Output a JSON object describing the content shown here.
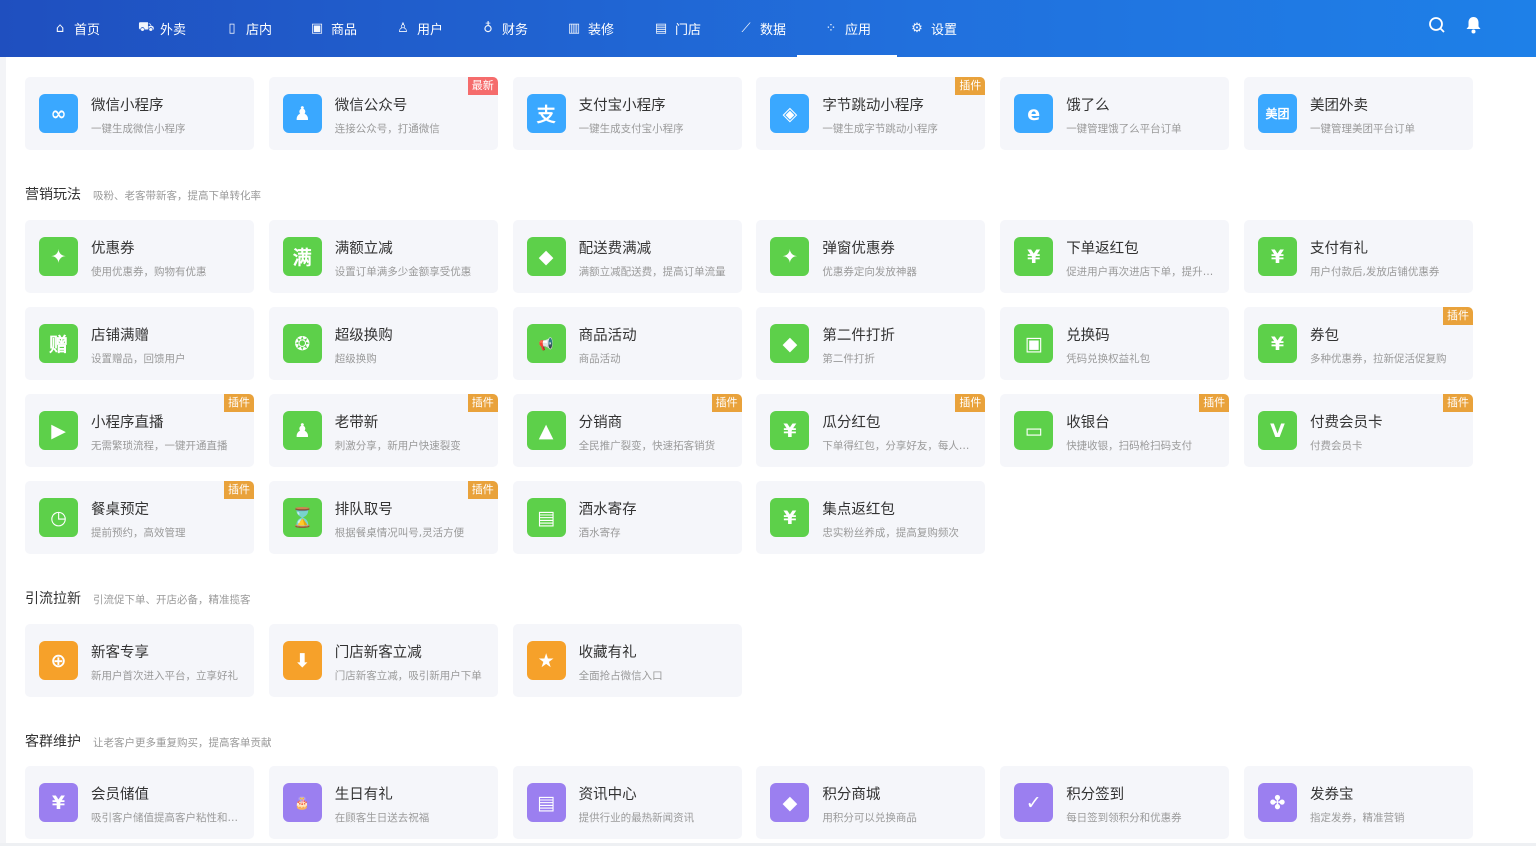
{
  "colors": {
    "blue": "#3aa8ff",
    "green": "#5dd04a",
    "orange": "#f6a12a",
    "purple": "#9b7ff0",
    "badge_plugin": "#e9a23b",
    "badge_new": "#f56c6c"
  },
  "nav": {
    "items": [
      {
        "label": "首页",
        "icon": "home-icon",
        "glyph": "⌂"
      },
      {
        "label": "外卖",
        "icon": "takeout-icon",
        "glyph": "⛟"
      },
      {
        "label": "店内",
        "icon": "door-icon",
        "glyph": "▯"
      },
      {
        "label": "商品",
        "icon": "goods-icon",
        "glyph": "▣"
      },
      {
        "label": "用户",
        "icon": "user-icon",
        "glyph": "♙"
      },
      {
        "label": "财务",
        "icon": "money-bag-icon",
        "glyph": "♁"
      },
      {
        "label": "装修",
        "icon": "shop-icon",
        "glyph": "▥"
      },
      {
        "label": "门店",
        "icon": "store-icon",
        "glyph": "▤"
      },
      {
        "label": "数据",
        "icon": "chart-icon",
        "glyph": "⟋"
      },
      {
        "label": "应用",
        "icon": "apps-icon",
        "glyph": "⁘",
        "active": true
      },
      {
        "label": "设置",
        "icon": "gear-icon",
        "glyph": "⚙"
      }
    ]
  },
  "sections": [
    {
      "title": "",
      "subtitle": "",
      "color": "blue",
      "cards": [
        {
          "title": "微信小程序",
          "subtitle": "一键生成微信小程序",
          "icon": "wechat-miniprogram-icon",
          "glyph": "∞"
        },
        {
          "title": "微信公众号",
          "subtitle": "连接公众号，打通微信",
          "icon": "official-account-icon",
          "glyph": "♟",
          "badge": "最新",
          "badge_type": "new"
        },
        {
          "title": "支付宝小程序",
          "subtitle": "一键生成支付宝小程序",
          "icon": "alipay-icon",
          "glyph": "支"
        },
        {
          "title": "字节跳动小程序",
          "subtitle": "一键生成字节跳动小程序",
          "icon": "bytedance-icon",
          "glyph": "◈",
          "badge": "插件",
          "badge_type": "plugin"
        },
        {
          "title": "饿了么",
          "subtitle": "一键管理饿了么平台订单",
          "icon": "eleme-icon",
          "glyph": "e"
        },
        {
          "title": "美团外卖",
          "subtitle": "一键管理美团平台订单",
          "icon": "meituan-icon",
          "glyph": "美团"
        }
      ]
    },
    {
      "title": "营销玩法",
      "subtitle": "吸粉、老客带新客，提高下单转化率",
      "color": "green",
      "cards": [
        {
          "title": "优惠券",
          "subtitle": "使用优惠券，购物有优惠",
          "icon": "coupon-icon",
          "glyph": "✦"
        },
        {
          "title": "满额立减",
          "subtitle": "设置订单满多少金额享受优惠",
          "icon": "full-reduction-icon",
          "glyph": "满"
        },
        {
          "title": "配送费满减",
          "subtitle": "满额立减配送费，提高订单流量",
          "icon": "tag-icon",
          "glyph": "◆"
        },
        {
          "title": "弹窗优惠券",
          "subtitle": "优惠券定向发放神器",
          "icon": "popup-coupon-icon",
          "glyph": "✦"
        },
        {
          "title": "下单返红包",
          "subtitle": "促进用户再次进店下单，提升复购率",
          "icon": "red-packet-icon",
          "glyph": "¥"
        },
        {
          "title": "支付有礼",
          "subtitle": "用户付款后,发放店铺优惠券",
          "icon": "pay-gift-icon",
          "glyph": "¥"
        },
        {
          "title": "店铺满赠",
          "subtitle": "设置赠品，回馈用户",
          "icon": "gift-text-icon",
          "glyph": "赠"
        },
        {
          "title": "超级换购",
          "subtitle": "超级换购",
          "icon": "wheel-icon",
          "glyph": "❂"
        },
        {
          "title": "商品活动",
          "subtitle": "商品活动",
          "icon": "megaphone-icon",
          "glyph": "📢"
        },
        {
          "title": "第二件打折",
          "subtitle": "第二件打折",
          "icon": "discount-tag-icon",
          "glyph": "◆"
        },
        {
          "title": "兑换码",
          "subtitle": "凭码兑换权益礼包",
          "icon": "redeem-code-icon",
          "glyph": "▣"
        },
        {
          "title": "券包",
          "subtitle": "多种优惠券，拉新促活促复购",
          "icon": "coupon-pack-icon",
          "glyph": "¥",
          "badge": "插件",
          "badge_type": "plugin"
        },
        {
          "title": "小程序直播",
          "subtitle": "无需繁琐流程，一键开通直播",
          "icon": "live-video-icon",
          "glyph": "▶",
          "badge": "插件",
          "badge_type": "plugin"
        },
        {
          "title": "老带新",
          "subtitle": "刺激分享，新用户快速裂变",
          "icon": "referral-icon",
          "glyph": "♟",
          "badge": "插件",
          "badge_type": "plugin"
        },
        {
          "title": "分销商",
          "subtitle": "全民推广裂变，快速拓客销货",
          "icon": "distributor-icon",
          "glyph": "▲",
          "badge": "插件",
          "badge_type": "plugin"
        },
        {
          "title": "瓜分红包",
          "subtitle": "下单得红包，分享好友，每人瓜分",
          "icon": "split-red-packet-icon",
          "glyph": "¥",
          "badge": "插件",
          "badge_type": "plugin"
        },
        {
          "title": "收银台",
          "subtitle": "快捷收银，扫码枪扫码支付",
          "icon": "cashier-icon",
          "glyph": "▭",
          "badge": "插件",
          "badge_type": "plugin"
        },
        {
          "title": "付费会员卡",
          "subtitle": "付费会员卡",
          "icon": "vip-card-icon",
          "glyph": "V",
          "badge": "插件",
          "badge_type": "plugin"
        },
        {
          "title": "餐桌预定",
          "subtitle": "提前预约，高效管理",
          "icon": "calendar-clock-icon",
          "glyph": "◷",
          "badge": "插件",
          "badge_type": "plugin"
        },
        {
          "title": "排队取号",
          "subtitle": "根据餐桌情况叫号,灵活方便",
          "icon": "hourglass-icon",
          "glyph": "⌛",
          "badge": "插件",
          "badge_type": "plugin"
        },
        {
          "title": "酒水寄存",
          "subtitle": "酒水寄存",
          "icon": "storage-icon",
          "glyph": "▤"
        },
        {
          "title": "集点返红包",
          "subtitle": "忠实粉丝养成，提高复购频次",
          "icon": "points-red-packet-icon",
          "glyph": "¥"
        }
      ]
    },
    {
      "title": "引流拉新",
      "subtitle": "引流促下单、开店必备，精准揽客",
      "color": "orange",
      "cards": [
        {
          "title": "新客专享",
          "subtitle": "新用户首次进入平台，立享好礼",
          "icon": "new-customer-icon",
          "glyph": "⊕"
        },
        {
          "title": "门店新客立减",
          "subtitle": "门店新客立减，吸引新用户下单",
          "icon": "badge-down-icon",
          "glyph": "⬇"
        },
        {
          "title": "收藏有礼",
          "subtitle": "全面抢占微信入口",
          "icon": "star-icon",
          "glyph": "★"
        }
      ]
    },
    {
      "title": "客群维护",
      "subtitle": "让老客户更多重复购买，提高客单贡献",
      "color": "purple",
      "cards": [
        {
          "title": "会员储值",
          "subtitle": "吸引客户储值提高客户粘性和复购率",
          "icon": "money-bag-icon",
          "glyph": "¥"
        },
        {
          "title": "生日有礼",
          "subtitle": "在顾客生日送去祝福",
          "icon": "cake-icon",
          "glyph": "🎂"
        },
        {
          "title": "资讯中心",
          "subtitle": "提供行业的最热新闻资讯",
          "icon": "news-icon",
          "glyph": "▤"
        },
        {
          "title": "积分商城",
          "subtitle": "用积分可以兑换商品",
          "icon": "points-mall-icon",
          "glyph": "◆"
        },
        {
          "title": "积分签到",
          "subtitle": "每日签到领积分和优惠券",
          "icon": "calendar-check-icon",
          "glyph": "✓"
        },
        {
          "title": "发券宝",
          "subtitle": "指定发券，精准营销",
          "icon": "grid-icon",
          "glyph": "✤"
        }
      ]
    }
  ]
}
